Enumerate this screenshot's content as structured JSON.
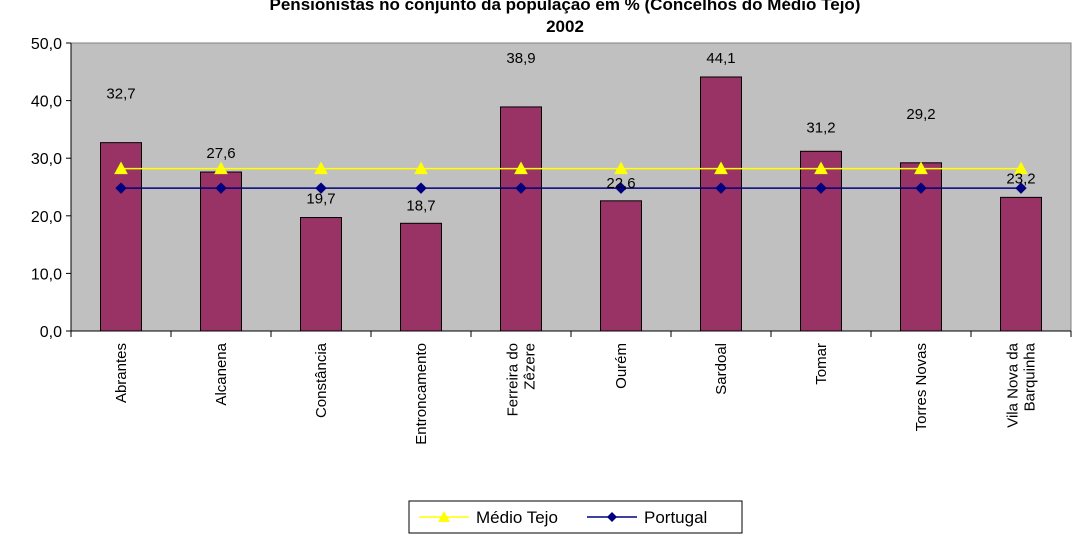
{
  "chart_data": {
    "type": "bar",
    "title_line1": "Pensionistas no conjunto da população em % (Concelhos do Médio Tejo)",
    "title_line2": "2002",
    "categories": [
      [
        "Abrantes"
      ],
      [
        "Alcanena"
      ],
      [
        "Constância"
      ],
      [
        "Entroncamento"
      ],
      [
        "Ferreira do",
        "Zêzere"
      ],
      [
        "Ourém"
      ],
      [
        "Sardoal"
      ],
      [
        "Tomar"
      ],
      [
        "Torres Novas"
      ],
      [
        "Vila Nova da",
        "Barquinha"
      ]
    ],
    "values": [
      32.7,
      27.6,
      19.7,
      18.7,
      38.9,
      22.6,
      44.1,
      31.2,
      29.2,
      23.2
    ],
    "value_labels": [
      "32,7",
      "27,6",
      "19,7",
      "18,7",
      "38,9",
      "22,6",
      "44,1",
      "31,2",
      "29,2",
      "23,2"
    ],
    "lines": [
      {
        "name": "Médio Tejo",
        "value": 28.2,
        "color": "#ffff00",
        "marker": "triangle"
      },
      {
        "name": "Portugal",
        "value": 24.8,
        "color": "#000080",
        "marker": "diamond"
      }
    ],
    "ylim": [
      0,
      50
    ],
    "yticks": [
      0,
      10,
      20,
      30,
      40,
      50
    ],
    "ytick_labels": [
      "0,0",
      "10,0",
      "20,0",
      "30,0",
      "40,0",
      "50,0"
    ],
    "bar_color": "#993366",
    "plot_bg": "#c0c0c0",
    "grid": false,
    "legend_position": "bottom"
  }
}
